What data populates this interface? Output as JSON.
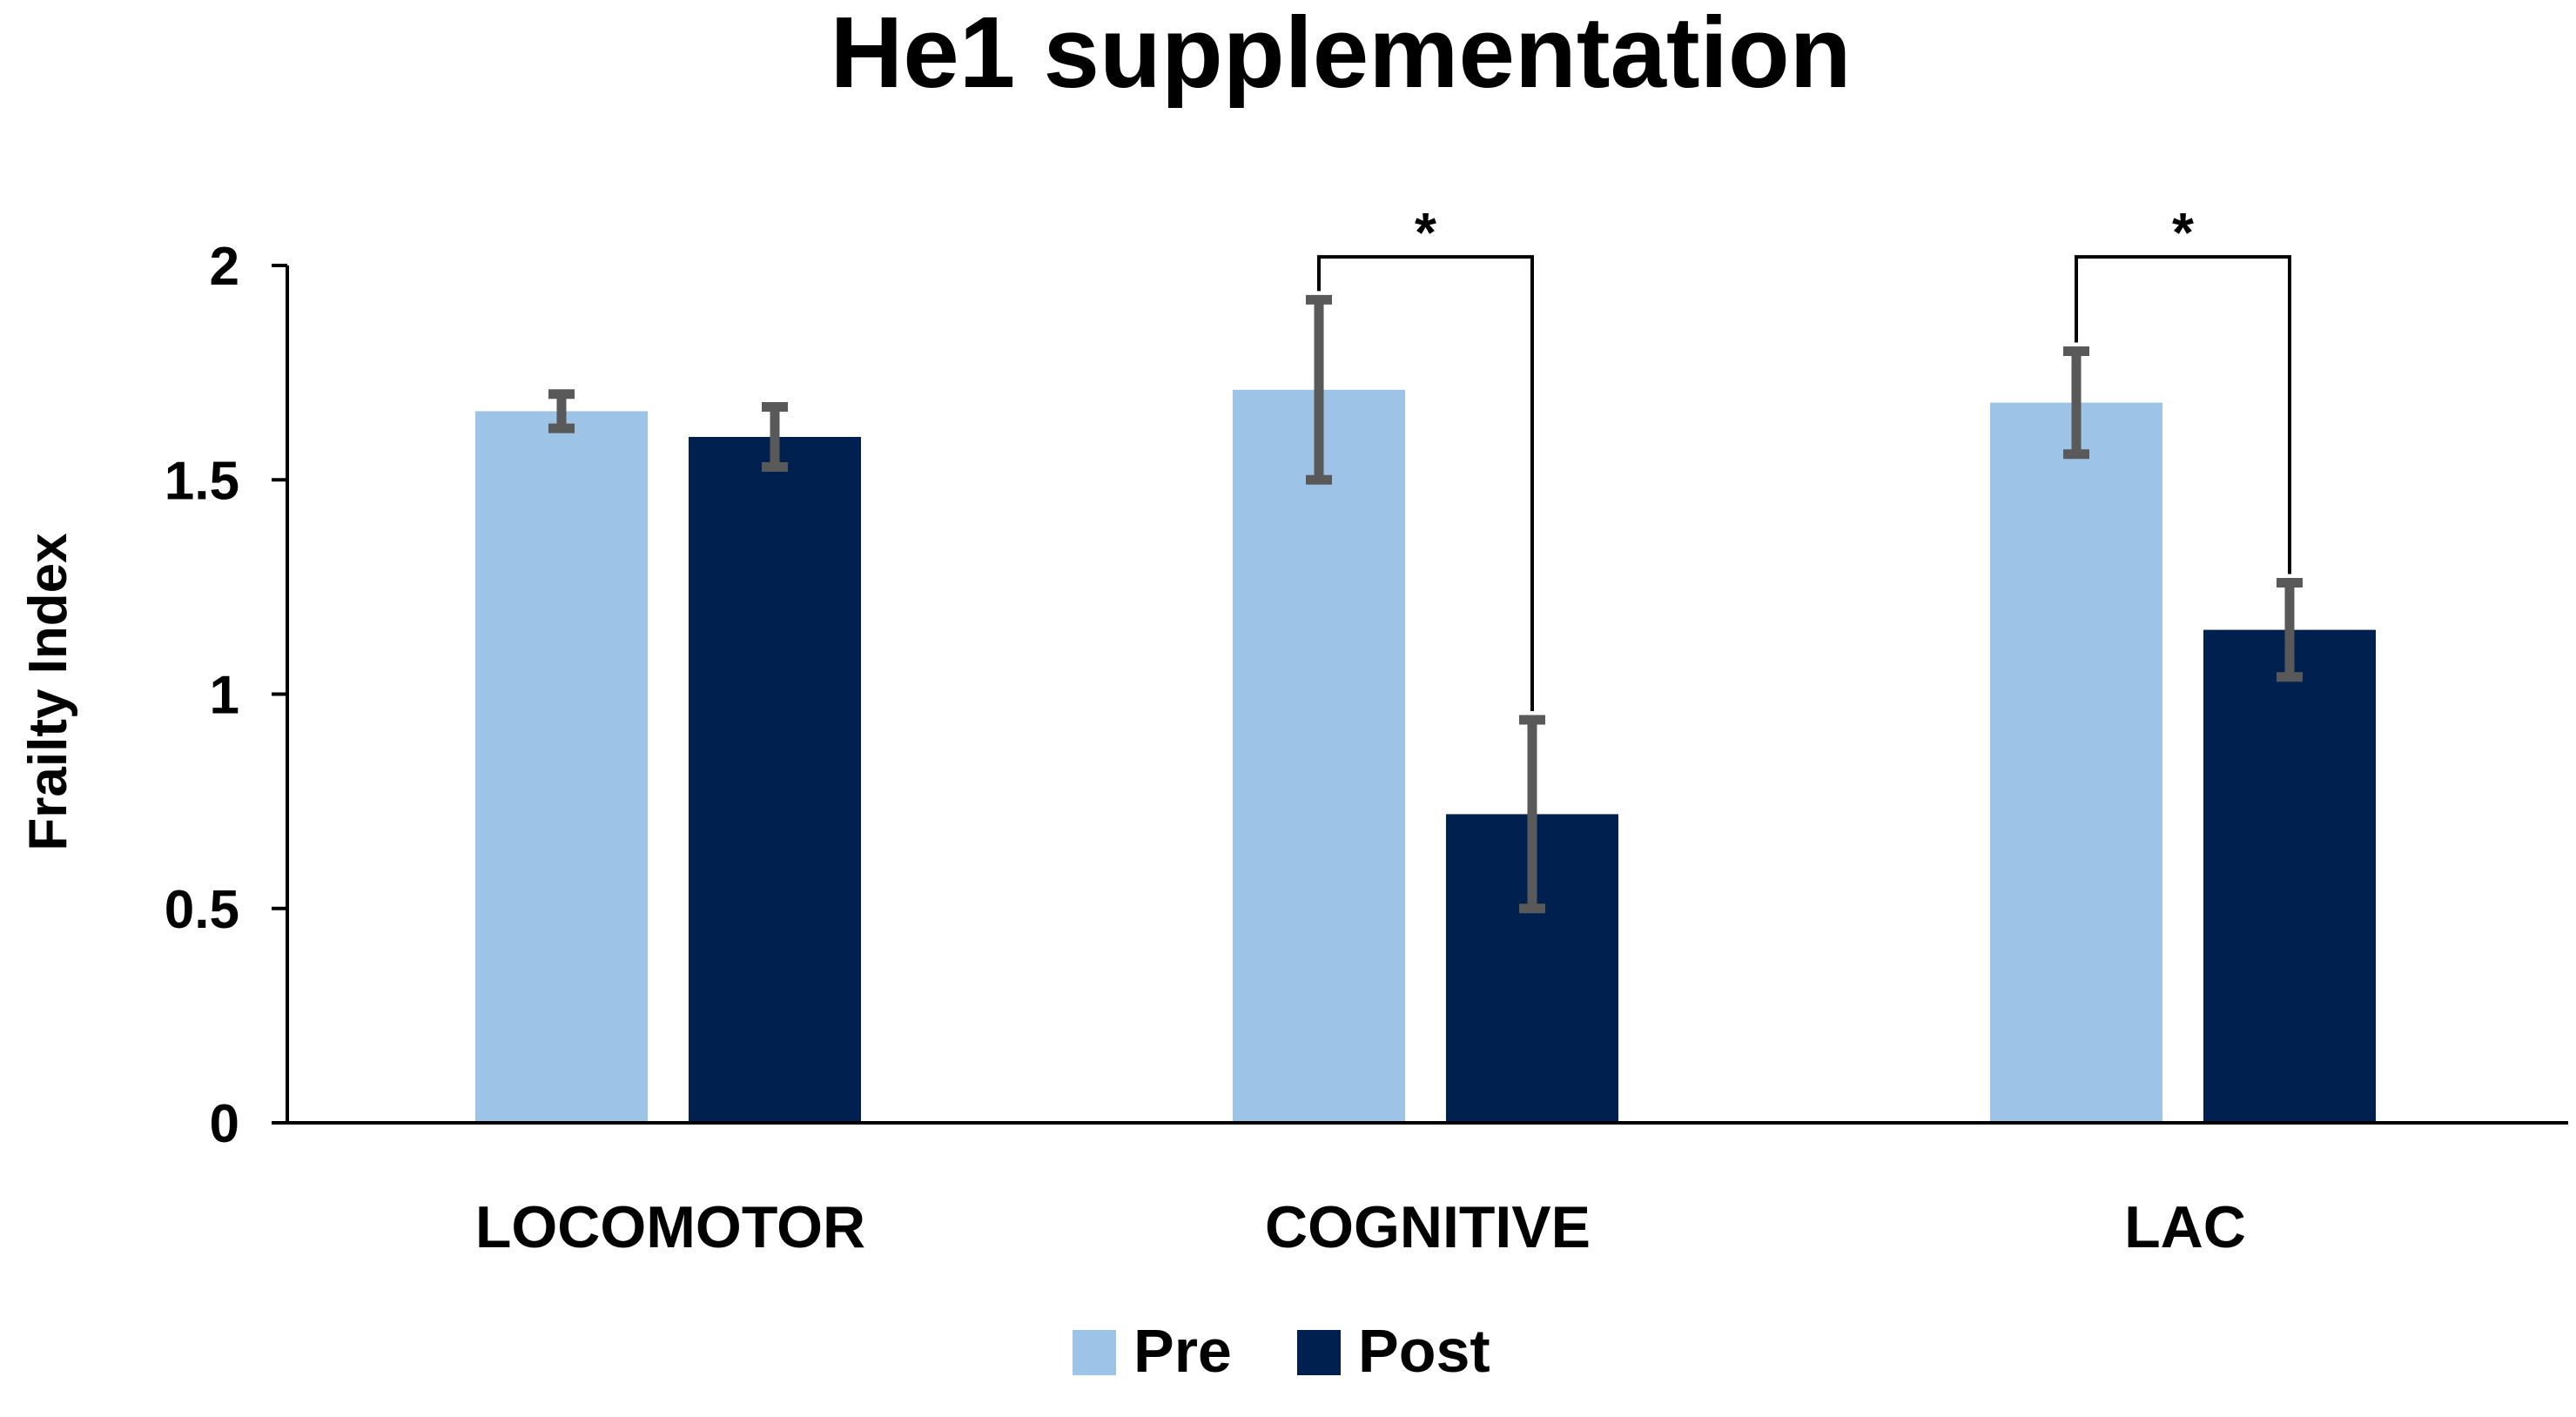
{
  "chart_data": {
    "type": "bar",
    "title": "He1 supplementation",
    "xlabel": "",
    "ylabel": "Frailty Index",
    "ylim": [
      0,
      2
    ],
    "yticks": [
      0,
      0.5,
      1,
      1.5,
      2
    ],
    "ytick_labels": [
      "0",
      "0.5",
      "1",
      "1.5",
      "2"
    ],
    "grid": false,
    "legend_position": "bottom-center",
    "categories": [
      "LOCOMOTOR",
      "COGNITIVE",
      "LAC"
    ],
    "series": [
      {
        "name": "Pre",
        "color": "#9dc3e6",
        "values": [
          1.66,
          1.71,
          1.68
        ],
        "errors": [
          0.04,
          0.21,
          0.12
        ]
      },
      {
        "name": "Post",
        "color": "#002050",
        "values": [
          1.6,
          0.72,
          1.15
        ],
        "errors": [
          0.07,
          0.22,
          0.11
        ]
      }
    ],
    "error_bar_color": "#595959",
    "significance": [
      {
        "category": "COGNITIVE",
        "label": "*",
        "bracket_y": 2.02
      },
      {
        "category": "LAC",
        "label": "*",
        "bracket_y": 2.02
      }
    ]
  }
}
